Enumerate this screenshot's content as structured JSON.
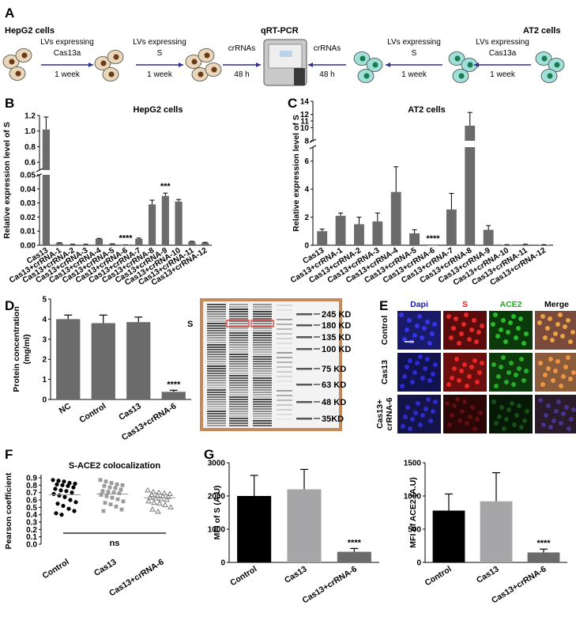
{
  "panels": {
    "A": "A",
    "B": "B",
    "C": "C",
    "D": "D",
    "E": "E",
    "F": "F",
    "G": "G"
  },
  "workflow": {
    "left_title": "HepG2 cells",
    "right_title": "AT2 cells",
    "center_title": "qRT-PCR",
    "steps_left": [
      {
        "line1": "LVs expressing",
        "line2": "Cas13a",
        "dur": "1 week"
      },
      {
        "line1": "LVs expressing",
        "line2": "S",
        "dur": "1 week"
      },
      {
        "line1": "crRNAs",
        "line2": "",
        "dur": "48 h"
      }
    ],
    "steps_right": [
      {
        "line1": "crRNAs",
        "line2": "",
        "dur": "48 h"
      },
      {
        "line1": "LVs expressing",
        "line2": "S",
        "dur": "1 week"
      },
      {
        "line1": "LVs expressing",
        "line2": "Cas13a",
        "dur": "1 week"
      }
    ],
    "colors": {
      "hepg2_cell": "#e8d7b8",
      "hepg2_nucleus": "#6b3a1c",
      "at2_cell": "#9fe0d8",
      "at2_nucleus": "#1b7a50",
      "arrow": "#2f2f8f"
    }
  },
  "chart_data": [
    {
      "id": "B",
      "type": "bar",
      "title": "HepG2 cells",
      "ylabel": "Relative expression level of S",
      "broken_axis": true,
      "ylim_lower": [
        0,
        0.05
      ],
      "ylim_upper": [
        0.5,
        1.2
      ],
      "yticks_lower": [
        "0.00",
        "0.01",
        "0.02",
        "0.03",
        "0.04",
        "0.05"
      ],
      "yticks_upper": [
        "0.6",
        "0.8",
        "1.0",
        "1.2"
      ],
      "categories": [
        "Cas13",
        "Cas13+crRNA-1",
        "Cas13+crRNA-2",
        "Cas13+crRNA-3",
        "Cas13+crRNA-4",
        "Cas13+crRNA-5",
        "Cas13+crRNA-6",
        "Cas13+crRNA-7",
        "Cas13+crRNA-8",
        "Cas13+crRNA-9",
        "Cas13+crRNA-10",
        "Cas13+crRNA-11",
        "Cas13+crRNA-12"
      ],
      "values": [
        1.02,
        0.0015,
        0.0005,
        0.0005,
        0.0045,
        0.0008,
        0.0001,
        0.0045,
        0.029,
        0.035,
        0.031,
        0.0025,
        0.0018
      ],
      "errors": [
        0.16,
        0.0003,
        0.0002,
        0.0002,
        0.0004,
        0.0002,
        0.0001,
        0.0006,
        0.003,
        0.002,
        0.0015,
        0.0003,
        0.0003
      ],
      "annotations": [
        {
          "index": 6,
          "text": "****"
        },
        {
          "index": 9,
          "text": "***"
        }
      ],
      "color": "#6b6b6b"
    },
    {
      "id": "C",
      "type": "bar",
      "title": "AT2  cells",
      "ylabel": "Relative expression level of S",
      "broken_axis": true,
      "ylim_lower": [
        0,
        7
      ],
      "ylim_upper": [
        8,
        14
      ],
      "yticks_lower": [
        "0",
        "2",
        "4",
        "6"
      ],
      "yticks_upper": [
        "8",
        "10",
        "11",
        "12",
        "14"
      ],
      "categories": [
        "Cas13",
        "Cas13+crRNA-1",
        "Cas13+crRNA-2",
        "Cas13+crRNA-3",
        "Cas13+crRNA-4",
        "Cas13+crRNA-5",
        "Cas13+crRNA-6",
        "Cas13+crRNA-7",
        "Cas13+crRNA-8",
        "Cas13+crRNA-9",
        "Cas13+crRNA-10",
        "Cas13+crRNA-11",
        "Cas13+crRNA-12"
      ],
      "values": [
        1.0,
        2.1,
        1.5,
        1.7,
        3.8,
        0.85,
        0.0,
        2.55,
        10.3,
        1.1,
        0.03,
        0.05,
        0.03
      ],
      "errors": [
        0.15,
        0.2,
        0.5,
        0.6,
        1.8,
        0.25,
        0.0,
        1.15,
        2.0,
        0.3,
        0.01,
        0.02,
        0.01
      ],
      "annotations": [
        {
          "index": 6,
          "text": "****"
        }
      ],
      "color": "#6b6b6b"
    },
    {
      "id": "D",
      "type": "bar",
      "ylabel": "Protein concentration\n(mg/ml)",
      "categories": [
        "NC",
        "Control",
        "Cas13",
        "Cas13+crRNA-6"
      ],
      "values": [
        4.0,
        3.8,
        3.85,
        0.38
      ],
      "errors": [
        0.2,
        0.4,
        0.25,
        0.08
      ],
      "ylim": [
        0,
        5
      ],
      "yticks": [
        "0",
        "1",
        "2",
        "3",
        "4",
        "5"
      ],
      "annotations": [
        {
          "index": 3,
          "text": "****"
        }
      ],
      "color": "#6b6b6b"
    },
    {
      "id": "F",
      "type": "scatter",
      "title": "S-ACE2 colocalization",
      "ylabel": "Pearson coefficient",
      "categories": [
        "Control",
        "Cas13",
        "Cas13+crRNA-6"
      ],
      "ylim": [
        0,
        0.9
      ],
      "yticks": [
        "0.0",
        "0.1",
        "0.2",
        "0.3",
        "0.4",
        "0.5",
        "0.6",
        "0.7",
        "0.8",
        "0.9"
      ],
      "series": [
        {
          "name": "Control",
          "marker": "circle",
          "color": "#000000",
          "mean": 0.67,
          "values": [
            0.87,
            0.86,
            0.85,
            0.83,
            0.82,
            0.81,
            0.8,
            0.79,
            0.77,
            0.75,
            0.73,
            0.72,
            0.7,
            0.68,
            0.66,
            0.64,
            0.6,
            0.57,
            0.55,
            0.52,
            0.48,
            0.45,
            0.42,
            0.4
          ]
        },
        {
          "name": "Cas13",
          "marker": "square",
          "color": "#9a9a9a",
          "mean": 0.68,
          "values": [
            0.87,
            0.85,
            0.83,
            0.81,
            0.8,
            0.79,
            0.77,
            0.76,
            0.74,
            0.72,
            0.71,
            0.7,
            0.69,
            0.67,
            0.65,
            0.63,
            0.61,
            0.58,
            0.56,
            0.54,
            0.51,
            0.47,
            0.45
          ]
        },
        {
          "name": "Cas13+crRNA-6",
          "marker": "triangle",
          "color": "#7a7a7a",
          "mean": 0.63,
          "values": [
            0.73,
            0.71,
            0.7,
            0.69,
            0.68,
            0.67,
            0.66,
            0.65,
            0.64,
            0.63,
            0.62,
            0.61,
            0.6,
            0.58,
            0.56,
            0.55,
            0.53,
            0.5,
            0.47,
            0.44
          ]
        }
      ],
      "annotations": [
        {
          "text": "ns"
        }
      ]
    },
    {
      "id": "G1",
      "type": "bar",
      "ylabel": "MFI of S (A.U)",
      "categories": [
        "Control",
        "Cas13",
        "Cas13+crRNA-6"
      ],
      "values": [
        2000,
        2200,
        320
      ],
      "errors": [
        620,
        600,
        100
      ],
      "ylim": [
        0,
        3000
      ],
      "yticks": [
        "0",
        "1000",
        "2000",
        "3000"
      ],
      "colors": [
        "#000000",
        "#a6a6a8",
        "#6b6b6b"
      ],
      "annotations": [
        {
          "index": 2,
          "text": "****"
        }
      ]
    },
    {
      "id": "G2",
      "type": "bar",
      "ylabel": "MFI of ACE2 (A.U)",
      "categories": [
        "Control",
        "Cas13",
        "Cas13+crRNA-6"
      ],
      "values": [
        780,
        920,
        150
      ],
      "errors": [
        250,
        430,
        50
      ],
      "ylim": [
        0,
        1500
      ],
      "yticks": [
        "0",
        "500",
        "1000",
        "1500"
      ],
      "colors": [
        "#000000",
        "#a6a6a8",
        "#6b6b6b"
      ],
      "annotations": [
        {
          "index": 2,
          "text": "****"
        }
      ]
    }
  ],
  "blot": {
    "s_label": "S",
    "markers": [
      "245 KD",
      "180 KD",
      "135 KD",
      "100 KD",
      "75 KD",
      "63 KD",
      "48 KD",
      "35KD"
    ]
  },
  "microscopy": {
    "columns": [
      "Dapi",
      "S",
      "ACE2",
      "Merge"
    ],
    "column_colors": [
      "#1414c8",
      "#e01818",
      "#19b019",
      "#000000"
    ],
    "rows": [
      "Control",
      "Cas13",
      "Cas13+\ncrRNA-6"
    ]
  }
}
